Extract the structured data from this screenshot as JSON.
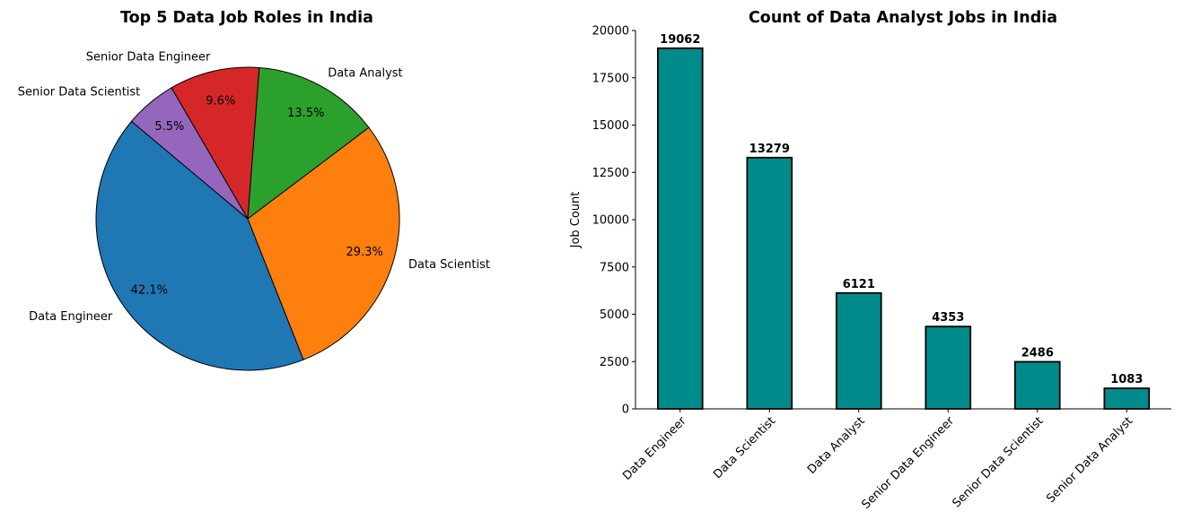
{
  "chart_data": [
    {
      "type": "pie",
      "title": "Top 5 Data Job Roles in India",
      "categories": [
        "Data Engineer",
        "Data Scientist",
        "Data Analyst",
        "Senior Data Engineer",
        "Senior Data Scientist"
      ],
      "values": [
        42.1,
        29.3,
        13.5,
        9.6,
        5.5
      ],
      "pct_labels": [
        "42.1%",
        "29.3%",
        "13.5%",
        "9.6%",
        "5.5%"
      ],
      "colors": [
        "#1f77b4",
        "#ff7f0e",
        "#2ca02c",
        "#d62728",
        "#9467bd"
      ],
      "start_angle": 140,
      "direction": "counterclockwise"
    },
    {
      "type": "bar",
      "title": "Count of Data Analyst Jobs in India",
      "categories": [
        "Data Engineer",
        "Data Scientist",
        "Data Analyst",
        "Senior Data Engineer",
        "Senior Data Scientist",
        "Senior Data Analyst"
      ],
      "values": [
        19062,
        13279,
        6121,
        4353,
        2486,
        1083
      ],
      "value_labels": [
        "19062",
        "13279",
        "6121",
        "4353",
        "2486",
        "1083"
      ],
      "xlabel": "",
      "ylabel": "Job Count",
      "ylim": [
        0,
        20000
      ],
      "yticks": [
        0,
        2500,
        5000,
        7500,
        10000,
        12500,
        15000,
        17500,
        20000
      ],
      "ytick_labels": [
        "0",
        "2500",
        "5000",
        "7500",
        "10000",
        "12500",
        "15000",
        "17500",
        "20000"
      ],
      "bar_color": "#008b8b",
      "edge_color": "#000000",
      "grid": false
    }
  ]
}
